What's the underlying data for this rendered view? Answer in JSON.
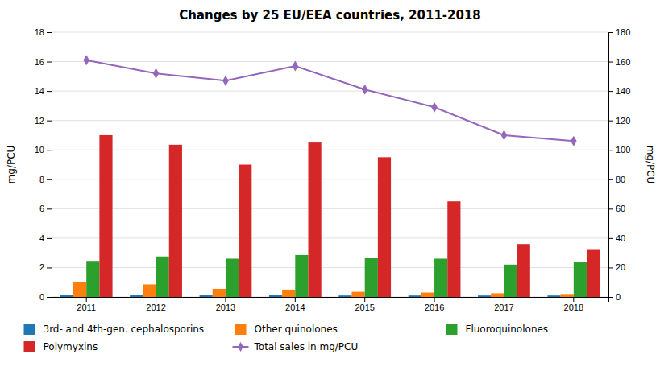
{
  "chart_data": {
    "type": "bar",
    "title": "Changes by 25 EU/EEA countries, 2011-2018",
    "categories": [
      "2011",
      "2012",
      "2013",
      "2014",
      "2015",
      "2016",
      "2017",
      "2018"
    ],
    "series": [
      {
        "name": "3rd- and 4th-gen. cephalosporins",
        "type": "bar",
        "values": [
          0.15,
          0.15,
          0.15,
          0.15,
          0.1,
          0.1,
          0.1,
          0.1
        ]
      },
      {
        "name": "Other quinolones",
        "type": "bar",
        "values": [
          1.0,
          0.85,
          0.55,
          0.5,
          0.35,
          0.3,
          0.25,
          0.2
        ]
      },
      {
        "name": "Fluoroquinolones",
        "type": "bar",
        "values": [
          2.45,
          2.75,
          2.6,
          2.85,
          2.65,
          2.6,
          2.2,
          2.35
        ]
      },
      {
        "name": "Polymyxins",
        "type": "bar",
        "values": [
          11.0,
          10.35,
          9.0,
          10.5,
          9.5,
          6.5,
          3.6,
          3.2
        ]
      },
      {
        "name": "Total sales in mg/PCU",
        "type": "line",
        "axis": "y2",
        "marker": "diamond",
        "values": [
          161,
          152,
          147,
          157,
          141,
          129,
          110,
          106
        ]
      }
    ],
    "y_label": "mg/PCU",
    "y2_label": "mg/PCU",
    "ylim": [
      0,
      18
    ],
    "yticks": [
      0,
      2,
      4,
      6,
      8,
      10,
      12,
      14,
      16,
      18
    ],
    "y2lim": [
      0,
      180
    ],
    "y2ticks": [
      0,
      20,
      40,
      60,
      80,
      100,
      120,
      140,
      160,
      180
    ],
    "grid": true,
    "legend": "bottom"
  }
}
